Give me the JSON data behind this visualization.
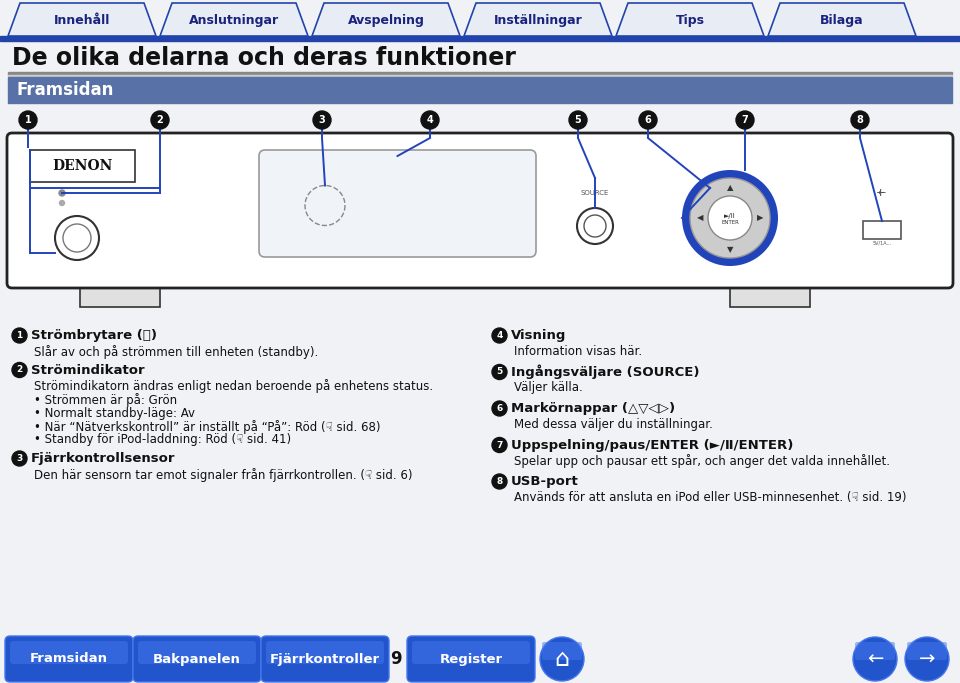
{
  "bg_color": "#f0f2f5",
  "top_nav": {
    "tabs": [
      "Innehåll",
      "Anslutningar",
      "Avspelning",
      "Inställningar",
      "Tips",
      "Bilaga"
    ],
    "tab_bg": "#e8eaf2",
    "tab_border": "#2244aa",
    "tab_text": "#1a237e",
    "bar_color": "#2244aa"
  },
  "title": "De olika delarna och deras funktioner",
  "title_color": "#111111",
  "section_header": "Framsidan",
  "section_header_bg": "#5872a8",
  "section_header_text": "#ffffff",
  "device_bg": "#ffffff",
  "device_border": "#111111",
  "device_line_color": "#2244bb",
  "number_bg": "#111111",
  "numbers_x": [
    28,
    160,
    322,
    430,
    578,
    648,
    745,
    860
  ],
  "left_col": [
    {
      "num": "1",
      "bold": "Strömbrytare (⏻)",
      "text": "Slår av och på strömmen till enheten (standby)."
    },
    {
      "num": "2",
      "bold": "Strömindikator",
      "text": "Strömindikatorn ändras enligt nedan beroende på enhetens status.\n  • Strömmen är på: Grön\n  • Normalt standby-läge: Av\n  • När “Nätverkskontroll” är inställt på “På”: Röd (☟ sid. 68)\n  • Standby för iPod-laddning: Röd (☟ sid. 41)"
    },
    {
      "num": "3",
      "bold": "Fjärrkontrollsensor",
      "text": "Den här sensorn tar emot signaler från fjärrkontrollen. (☟ sid. 6)"
    }
  ],
  "right_col": [
    {
      "num": "4",
      "bold": "Visning",
      "text": "Information visas här."
    },
    {
      "num": "5",
      "bold": "Ingångsväljare (SOURCE)",
      "text": "Väljer källa."
    },
    {
      "num": "6",
      "bold": "Markörnappar (△▽◁▷)",
      "text": "Med dessa väljer du inställningar."
    },
    {
      "num": "7",
      "bold": "Uppspelning/paus/ENTER (►/Ⅱ/ENTER)",
      "text": "Spelar upp och pausar ett spår, och anger det valda innehållet."
    },
    {
      "num": "8",
      "bold": "USB-port",
      "text": "Används för att ansluta en iPod eller USB-minnesenhet. (☟ sid. 19)"
    }
  ],
  "bottom_nav": {
    "buttons": [
      "Framsidan",
      "Bakpanelen",
      "Fjärrkontroller",
      "Register"
    ],
    "page_num": "9"
  }
}
